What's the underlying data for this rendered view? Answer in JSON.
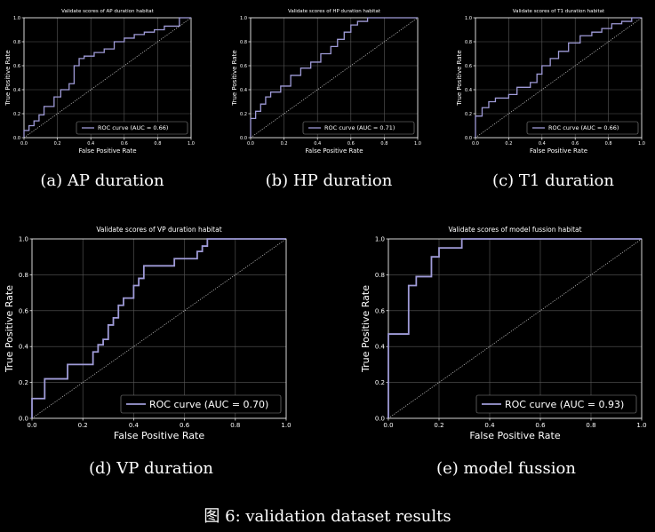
{
  "figure": {
    "caption_prefix": "图 6:",
    "caption_text": "validation dataset results"
  },
  "chart_data": [
    {
      "type": "line",
      "id": "a",
      "subcaption": "(a) AP duration",
      "title": "Validate scores of AP duration habitat",
      "xlabel": "False Positive Rate",
      "ylabel": "True Positive Rate",
      "xlim": [
        0,
        1
      ],
      "ylim": [
        0,
        1
      ],
      "xticks": [
        "0.0",
        "0.2",
        "0.4",
        "0.6",
        "0.8",
        "1.0"
      ],
      "yticks": [
        "0.0",
        "0.2",
        "0.4",
        "0.6",
        "0.8",
        "1.0"
      ],
      "grid": true,
      "legend": "lower right",
      "series": [
        {
          "name": "ROC curve (AUC = 0.66)",
          "color": "#9f9bd8",
          "x": [
            0,
            0,
            0.03,
            0.03,
            0.06,
            0.06,
            0.09,
            0.09,
            0.12,
            0.12,
            0.18,
            0.18,
            0.22,
            0.22,
            0.27,
            0.27,
            0.3,
            0.3,
            0.33,
            0.33,
            0.36,
            0.36,
            0.42,
            0.42,
            0.48,
            0.48,
            0.54,
            0.54,
            0.6,
            0.6,
            0.66,
            0.66,
            0.72,
            0.72,
            0.78,
            0.78,
            0.84,
            0.84,
            0.93,
            0.93,
            1.0
          ],
          "y": [
            0,
            0.06,
            0.06,
            0.1,
            0.1,
            0.14,
            0.14,
            0.19,
            0.19,
            0.26,
            0.26,
            0.34,
            0.34,
            0.4,
            0.4,
            0.45,
            0.45,
            0.6,
            0.6,
            0.66,
            0.66,
            0.68,
            0.68,
            0.71,
            0.71,
            0.74,
            0.74,
            0.8,
            0.8,
            0.83,
            0.83,
            0.86,
            0.86,
            0.88,
            0.88,
            0.9,
            0.9,
            0.93,
            0.93,
            1.0,
            1.0
          ]
        },
        {
          "name": "",
          "style": "dotted",
          "color": "#cfcfcf",
          "x": [
            0,
            1
          ],
          "y": [
            0,
            1
          ]
        }
      ]
    },
    {
      "type": "line",
      "id": "b",
      "subcaption": "(b) HP duration",
      "title": "Validate scores of HP duration habitat",
      "xlabel": "False Positive Rate",
      "ylabel": "True Positive Rate",
      "xlim": [
        0,
        1
      ],
      "ylim": [
        0,
        1
      ],
      "xticks": [
        "0.0",
        "0.2",
        "0.4",
        "0.6",
        "0.8",
        "1.0"
      ],
      "yticks": [
        "0.0",
        "0.2",
        "0.4",
        "0.6",
        "0.8",
        "1.0"
      ],
      "grid": true,
      "legend": "lower right",
      "series": [
        {
          "name": "ROC curve (AUC = 0.71)",
          "color": "#9f9bd8",
          "x": [
            0,
            0,
            0.03,
            0.03,
            0.06,
            0.06,
            0.09,
            0.09,
            0.12,
            0.12,
            0.18,
            0.18,
            0.24,
            0.24,
            0.3,
            0.3,
            0.36,
            0.36,
            0.42,
            0.42,
            0.48,
            0.48,
            0.52,
            0.52,
            0.56,
            0.56,
            0.6,
            0.6,
            0.64,
            0.64,
            0.7,
            0.7,
            1.0
          ],
          "y": [
            0,
            0.16,
            0.16,
            0.22,
            0.22,
            0.28,
            0.28,
            0.34,
            0.34,
            0.38,
            0.38,
            0.43,
            0.43,
            0.52,
            0.52,
            0.58,
            0.58,
            0.63,
            0.63,
            0.7,
            0.7,
            0.76,
            0.76,
            0.82,
            0.82,
            0.88,
            0.88,
            0.94,
            0.94,
            0.97,
            0.97,
            1.0,
            1.0
          ]
        },
        {
          "name": "",
          "style": "dotted",
          "color": "#cfcfcf",
          "x": [
            0,
            1
          ],
          "y": [
            0,
            1
          ]
        }
      ]
    },
    {
      "type": "line",
      "id": "c",
      "subcaption": "(c) T1 duration",
      "title": "Validate scores of T1 duration habitat",
      "xlabel": "False Positive Rate",
      "ylabel": "True Positive Rate",
      "xlim": [
        0,
        1
      ],
      "ylim": [
        0,
        1
      ],
      "xticks": [
        "0.0",
        "0.2",
        "0.4",
        "0.6",
        "0.8",
        "1.0"
      ],
      "yticks": [
        "0.0",
        "0.2",
        "0.4",
        "0.6",
        "0.8",
        "1.0"
      ],
      "grid": true,
      "legend": "lower right",
      "series": [
        {
          "name": "ROC curve (AUC = 0.66)",
          "color": "#9f9bd8",
          "x": [
            0,
            0,
            0.04,
            0.04,
            0.08,
            0.08,
            0.12,
            0.12,
            0.2,
            0.2,
            0.25,
            0.25,
            0.33,
            0.33,
            0.37,
            0.37,
            0.4,
            0.4,
            0.45,
            0.45,
            0.5,
            0.5,
            0.56,
            0.56,
            0.63,
            0.63,
            0.7,
            0.7,
            0.76,
            0.76,
            0.82,
            0.82,
            0.88,
            0.88,
            0.94,
            0.94,
            1.0
          ],
          "y": [
            0,
            0.18,
            0.18,
            0.25,
            0.25,
            0.3,
            0.3,
            0.33,
            0.33,
            0.36,
            0.36,
            0.42,
            0.42,
            0.46,
            0.46,
            0.53,
            0.53,
            0.6,
            0.6,
            0.66,
            0.66,
            0.72,
            0.72,
            0.79,
            0.79,
            0.85,
            0.85,
            0.88,
            0.88,
            0.91,
            0.91,
            0.95,
            0.95,
            0.97,
            0.97,
            1.0,
            1.0
          ]
        },
        {
          "name": "",
          "style": "dotted",
          "color": "#cfcfcf",
          "x": [
            0,
            1
          ],
          "y": [
            0,
            1
          ]
        }
      ]
    },
    {
      "type": "line",
      "id": "d",
      "subcaption": "(d) VP duration",
      "title": "Validate scores of VP duration habitat",
      "xlabel": "False Positive Rate",
      "ylabel": "True Positive Rate",
      "xlim": [
        0,
        1
      ],
      "ylim": [
        0,
        1
      ],
      "xticks": [
        "0.0",
        "0.2",
        "0.4",
        "0.6",
        "0.8",
        "1.0"
      ],
      "yticks": [
        "0.0",
        "0.2",
        "0.4",
        "0.6",
        "0.8",
        "1.0"
      ],
      "grid": true,
      "legend": "lower right",
      "series": [
        {
          "name": "ROC curve (AUC = 0.70)",
          "color": "#9f9bd8",
          "x": [
            0,
            0,
            0.05,
            0.05,
            0.14,
            0.14,
            0.24,
            0.24,
            0.26,
            0.26,
            0.28,
            0.28,
            0.3,
            0.3,
            0.32,
            0.32,
            0.34,
            0.34,
            0.36,
            0.36,
            0.4,
            0.4,
            0.42,
            0.42,
            0.44,
            0.44,
            0.46,
            0.46,
            0.56,
            0.56,
            0.65,
            0.65,
            0.67,
            0.67,
            0.69,
            0.69,
            1.0
          ],
          "y": [
            0,
            0.11,
            0.11,
            0.22,
            0.22,
            0.3,
            0.3,
            0.37,
            0.37,
            0.41,
            0.41,
            0.44,
            0.44,
            0.52,
            0.52,
            0.56,
            0.56,
            0.63,
            0.63,
            0.67,
            0.67,
            0.74,
            0.74,
            0.78,
            0.78,
            0.85,
            0.85,
            0.85,
            0.85,
            0.89,
            0.89,
            0.93,
            0.93,
            0.96,
            0.96,
            1.0,
            1.0
          ]
        },
        {
          "name": "",
          "style": "dotted",
          "color": "#cfcfcf",
          "x": [
            0,
            1
          ],
          "y": [
            0,
            1
          ]
        }
      ]
    },
    {
      "type": "line",
      "id": "e",
      "subcaption": "(e) model fussion",
      "title": "Validate scores of model fussion habitat",
      "xlabel": "False Positive Rate",
      "ylabel": "True Positive Rate",
      "xlim": [
        0,
        1
      ],
      "ylim": [
        0,
        1
      ],
      "xticks": [
        "0.0",
        "0.2",
        "0.4",
        "0.6",
        "0.8",
        "1.0"
      ],
      "yticks": [
        "0.0",
        "0.2",
        "0.4",
        "0.6",
        "0.8",
        "1.0"
      ],
      "grid": true,
      "legend": "lower right",
      "series": [
        {
          "name": "ROC curve (AUC = 0.93)",
          "color": "#9f9bd8",
          "x": [
            0,
            0,
            0.08,
            0.08,
            0.11,
            0.11,
            0.17,
            0.17,
            0.2,
            0.2,
            0.23,
            0.23,
            0.29,
            0.29,
            1.0
          ],
          "y": [
            0,
            0.47,
            0.47,
            0.74,
            0.74,
            0.79,
            0.79,
            0.9,
            0.9,
            0.95,
            0.95,
            0.95,
            0.95,
            1.0,
            1.0
          ]
        },
        {
          "name": "",
          "style": "dotted",
          "color": "#cfcfcf",
          "x": [
            0,
            1
          ],
          "y": [
            0,
            1
          ]
        }
      ]
    }
  ]
}
